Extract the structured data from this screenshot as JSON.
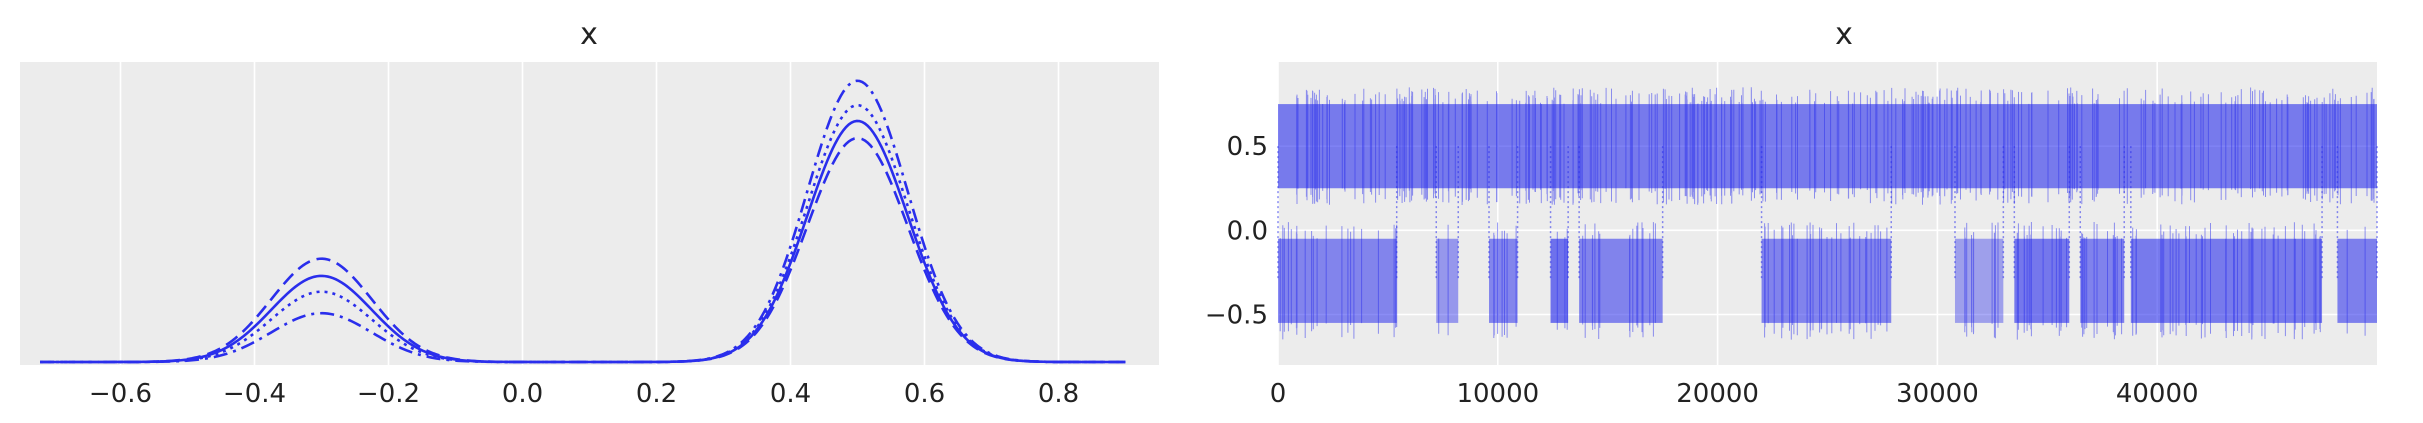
{
  "chart_data": [
    {
      "type": "line",
      "title": "x",
      "xlabel": "",
      "ylabel": "",
      "xlim": [
        -0.75,
        0.95
      ],
      "x_ticks": [
        "−0.6",
        "−0.4",
        "−0.2",
        "0.0",
        "0.2",
        "0.4",
        "0.6",
        "0.8"
      ],
      "x_tick_values": [
        -0.6,
        -0.4,
        -0.2,
        0.0,
        0.2,
        0.4,
        0.6,
        0.8
      ],
      "y_ticks_shown": false,
      "grid": true,
      "background": "#ececec",
      "line_color": "#2a2eec",
      "series": [
        {
          "linestyle": "solid",
          "x_range": [
            -0.72,
            0.9
          ],
          "peaks": [
            {
              "mean": -0.3,
              "sd": 0.075,
              "height": 0.3
            },
            {
              "mean": 0.5,
              "sd": 0.075,
              "height": 0.84
            }
          ]
        },
        {
          "linestyle": "dotted",
          "x_range": [
            -0.72,
            0.9
          ],
          "peaks": [
            {
              "mean": -0.3,
              "sd": 0.075,
              "height": 0.245
            },
            {
              "mean": 0.5,
              "sd": 0.075,
              "height": 0.895
            }
          ]
        },
        {
          "linestyle": "dashed",
          "x_range": [
            -0.72,
            0.9
          ],
          "peaks": [
            {
              "mean": -0.3,
              "sd": 0.075,
              "height": 0.36
            },
            {
              "mean": 0.5,
              "sd": 0.075,
              "height": 0.78
            }
          ]
        },
        {
          "linestyle": "dashdot",
          "x_range": [
            -0.72,
            0.9
          ],
          "peaks": [
            {
              "mean": -0.3,
              "sd": 0.075,
              "height": 0.17
            },
            {
              "mean": 0.5,
              "sd": 0.075,
              "height": 0.98
            }
          ]
        }
      ]
    },
    {
      "type": "line",
      "title": "x",
      "xlabel": "",
      "ylabel": "",
      "xlim": [
        0,
        50000
      ],
      "ylim": [
        -0.8,
        1.0
      ],
      "x_ticks": [
        "0",
        "10000",
        "20000",
        "30000",
        "40000"
      ],
      "x_tick_values": [
        0,
        10000,
        20000,
        30000,
        40000
      ],
      "y_ticks": [
        "0.5",
        "0.0",
        "−0.5"
      ],
      "y_tick_values": [
        0.5,
        0.0,
        -0.5
      ],
      "grid": true,
      "background": "#ececec",
      "line_color": "#2a2eec",
      "upper_mode": {
        "center": 0.5,
        "spread": [
          0.25,
          0.75
        ]
      },
      "lower_mode": {
        "center": -0.3,
        "spread": [
          -0.55,
          -0.05
        ]
      },
      "lower_mode_segments": [
        [
          0,
          5400
        ],
        [
          7200,
          8200
        ],
        [
          9600,
          10900
        ],
        [
          12400,
          13200
        ],
        [
          13700,
          17500
        ],
        [
          22000,
          27900
        ],
        [
          30800,
          33000
        ],
        [
          33500,
          36000
        ],
        [
          36500,
          38500
        ],
        [
          38800,
          47500
        ],
        [
          48200,
          50000
        ]
      ]
    }
  ]
}
